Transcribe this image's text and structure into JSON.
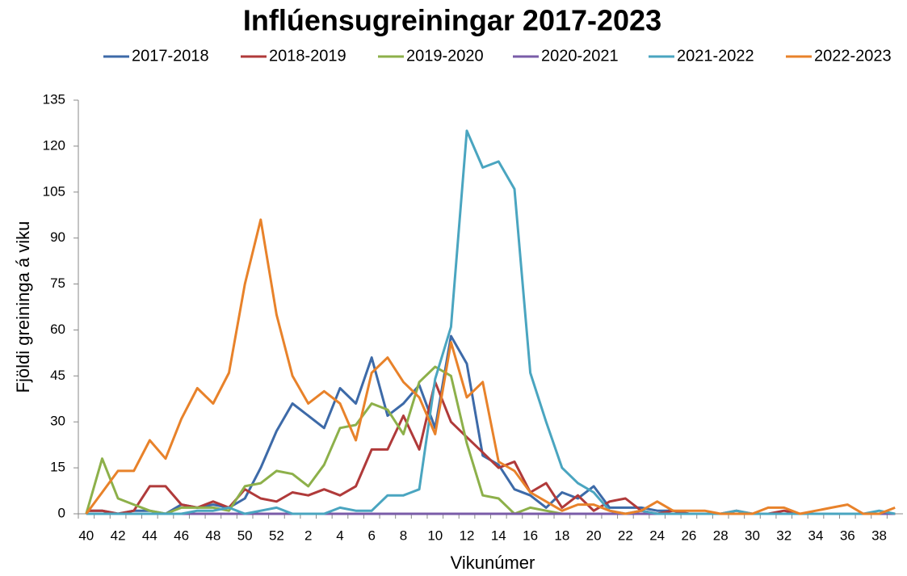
{
  "chart_data": {
    "type": "line",
    "title": "Inflúensugreiningar 2017-2023",
    "x_label": "Vikunúmer",
    "y_label": "Fjöldi greininga á viku",
    "categories": [
      "40",
      null,
      "42",
      null,
      "44",
      null,
      "46",
      null,
      "48",
      null,
      "50",
      null,
      "52",
      null,
      "2",
      null,
      "4",
      null,
      "6",
      null,
      "8",
      null,
      "10",
      null,
      "12",
      null,
      "14",
      null,
      "16",
      null,
      "18",
      null,
      "20",
      null,
      "22",
      null,
      "24",
      null,
      "26",
      null,
      "28",
      null,
      "30",
      null,
      "32",
      null,
      "34",
      null,
      "36",
      null,
      "38",
      null
    ],
    "ylim": [
      0,
      135
    ],
    "yticks": [
      0,
      15,
      30,
      45,
      60,
      75,
      90,
      105,
      120,
      135
    ],
    "legend": "top",
    "series": [
      {
        "name": "2017-2018",
        "color": "#3d6aa8",
        "values": [
          1,
          1,
          0,
          1,
          1,
          0,
          3,
          2,
          3,
          2,
          5,
          15,
          27,
          36,
          32,
          28,
          41,
          36,
          51,
          32,
          36,
          42,
          28,
          58,
          49,
          19,
          16,
          8,
          6,
          2,
          7,
          5,
          9,
          2,
          2,
          2,
          1,
          1,
          0,
          0,
          0,
          0,
          0,
          0,
          0,
          0,
          0,
          0,
          0,
          0,
          0,
          0
        ]
      },
      {
        "name": "2018-2019",
        "color": "#b03a3a",
        "values": [
          1,
          1,
          0,
          1,
          9,
          9,
          3,
          2,
          4,
          2,
          8,
          5,
          4,
          7,
          6,
          8,
          6,
          9,
          21,
          21,
          32,
          21,
          43,
          30,
          25,
          20,
          15,
          17,
          7,
          10,
          2,
          6,
          1,
          4,
          5,
          1,
          0,
          1,
          0,
          0,
          0,
          1,
          0,
          0,
          1,
          0,
          0,
          0,
          0,
          0,
          0,
          0
        ]
      },
      {
        "name": "2019-2020",
        "color": "#8db04a",
        "values": [
          0,
          18,
          5,
          3,
          1,
          0,
          2,
          2,
          2,
          1,
          9,
          10,
          14,
          13,
          9,
          16,
          28,
          29,
          36,
          34,
          26,
          43,
          48,
          45,
          23,
          6,
          5,
          0,
          2,
          1,
          0,
          0,
          0,
          0,
          0,
          0,
          0,
          0,
          0,
          0,
          0,
          0,
          0,
          0,
          0,
          0,
          0,
          0,
          0,
          0,
          0,
          0
        ]
      },
      {
        "name": "2020-2021",
        "color": "#7a5ca8",
        "values": [
          0,
          0,
          0,
          0,
          0,
          0,
          0,
          0,
          0,
          0,
          0,
          0,
          0,
          0,
          0,
          0,
          0,
          0,
          0,
          0,
          0,
          0,
          0,
          0,
          0,
          0,
          0,
          0,
          0,
          0,
          0,
          0,
          0,
          0,
          0,
          0,
          0,
          0,
          0,
          0,
          0,
          0,
          0,
          0,
          0,
          0,
          0,
          0,
          0,
          0,
          0,
          0
        ]
      },
      {
        "name": "2021-2022",
        "color": "#4aa5c0",
        "values": [
          0,
          0,
          0,
          0,
          0,
          0,
          0,
          1,
          1,
          2,
          0,
          1,
          2,
          0,
          0,
          0,
          2,
          1,
          1,
          6,
          6,
          8,
          44,
          61,
          125,
          113,
          115,
          106,
          46,
          30,
          15,
          10,
          7,
          1,
          0,
          1,
          0,
          0,
          0,
          0,
          0,
          1,
          0,
          0,
          0,
          0,
          0,
          0,
          0,
          0,
          1,
          0
        ]
      },
      {
        "name": "2022-2023",
        "color": "#e8822a",
        "values": [
          0,
          7,
          14,
          14,
          24,
          18,
          31,
          41,
          36,
          46,
          75,
          96,
          65,
          45,
          36,
          40,
          36,
          24,
          46,
          51,
          43,
          38,
          26,
          56,
          38,
          43,
          17,
          14,
          7,
          4,
          1,
          3,
          3,
          1,
          0,
          1,
          4,
          1,
          1,
          1,
          0,
          0,
          0,
          2,
          2,
          0,
          1,
          2,
          3,
          0,
          0,
          2
        ]
      }
    ]
  }
}
